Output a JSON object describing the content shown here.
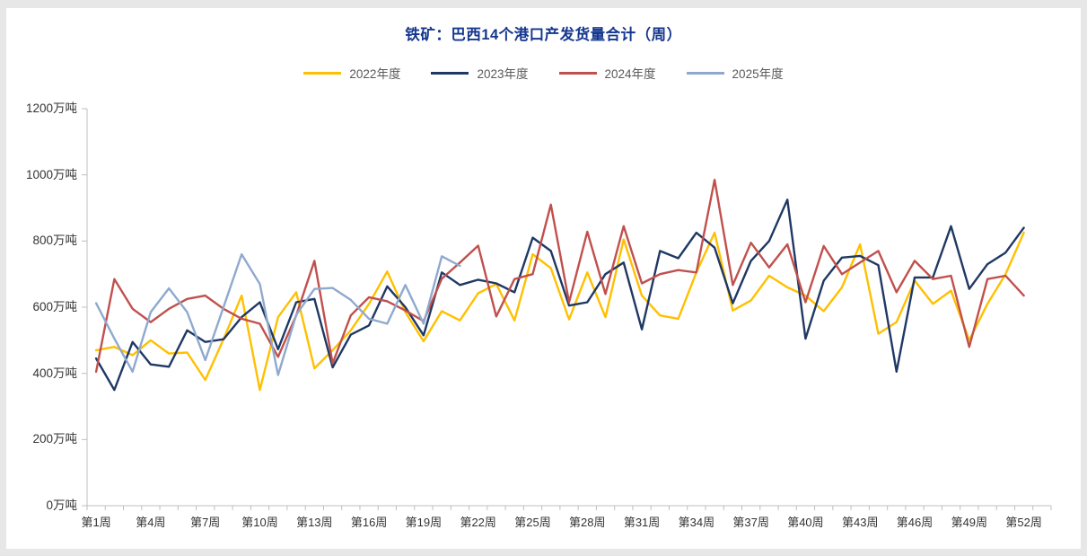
{
  "window": {
    "frame_background": "#E7E7E7",
    "card_background": "#FFFFFF"
  },
  "chart_data": {
    "type": "line",
    "title": "铁矿：巴西14个港口产发货量合计（周）",
    "title_color": "#14368E",
    "unit": "万吨",
    "weeks_total": 52,
    "ylim": [
      0,
      1200
    ],
    "y_tick_step": 200,
    "y_tick_labels": [
      "0万吨",
      "200万吨",
      "400万吨",
      "600万吨",
      "800万吨",
      "1000万吨",
      "1200万吨"
    ],
    "x_tick_labels": [
      {
        "week": 1,
        "label": "第1周"
      },
      {
        "week": 4,
        "label": "第4周"
      },
      {
        "week": 7,
        "label": "第7周"
      },
      {
        "week": 10,
        "label": "第10周"
      },
      {
        "week": 13,
        "label": "第13周"
      },
      {
        "week": 16,
        "label": "第16周"
      },
      {
        "week": 19,
        "label": "第19周"
      },
      {
        "week": 22,
        "label": "第22周"
      },
      {
        "week": 25,
        "label": "第25周"
      },
      {
        "week": 28,
        "label": "第28周"
      },
      {
        "week": 31,
        "label": "第31周"
      },
      {
        "week": 34,
        "label": "第34周"
      },
      {
        "week": 37,
        "label": "第37周"
      },
      {
        "week": 40,
        "label": "第40周"
      },
      {
        "week": 43,
        "label": "第43周"
      },
      {
        "week": 46,
        "label": "第46周"
      },
      {
        "week": 49,
        "label": "第49周"
      },
      {
        "week": 52,
        "label": "第52周"
      }
    ],
    "grid": false,
    "legend_position": "top",
    "axis_color": "#BFBFBF",
    "tick_label_color": "#333333",
    "legend_text_color": "#595959",
    "series": [
      {
        "name": "2022年度",
        "color": "#FFC000",
        "values": [
          470,
          480,
          455,
          500,
          460,
          463,
          380,
          503,
          635,
          350,
          570,
          645,
          415,
          470,
          530,
          610,
          708,
          585,
          497,
          588,
          560,
          642,
          670,
          560,
          760,
          718,
          563,
          705,
          570,
          805,
          635,
          575,
          565,
          705,
          825,
          590,
          620,
          695,
          660,
          635,
          588,
          660,
          790,
          520,
          555,
          680,
          610,
          650,
          500,
          610,
          700,
          825
        ]
      },
      {
        "name": "2023年度",
        "color": "#1F3864",
        "values": [
          445,
          350,
          495,
          427,
          420,
          530,
          495,
          503,
          570,
          615,
          473,
          615,
          625,
          418,
          517,
          545,
          663,
          600,
          515,
          705,
          667,
          683,
          672,
          645,
          810,
          770,
          605,
          615,
          700,
          735,
          533,
          770,
          748,
          825,
          780,
          612,
          740,
          800,
          925,
          505,
          680,
          750,
          755,
          727,
          405,
          690,
          690,
          845,
          655,
          730,
          765,
          840
        ]
      },
      {
        "name": "2024年度",
        "color": "#C0504D",
        "values": [
          405,
          685,
          595,
          555,
          595,
          625,
          635,
          595,
          565,
          550,
          450,
          575,
          740,
          430,
          575,
          630,
          618,
          590,
          558,
          686,
          735,
          786,
          572,
          685,
          700,
          910,
          615,
          828,
          640,
          845,
          672,
          700,
          712,
          705,
          985,
          667,
          795,
          720,
          790,
          615,
          785,
          700,
          735,
          770,
          645,
          740,
          685,
          695,
          480,
          685,
          695,
          635
        ]
      },
      {
        "name": "2025年度",
        "color": "#8FA9CE",
        "values": [
          612,
          505,
          405,
          585,
          657,
          585,
          440,
          600,
          760,
          670,
          395,
          577,
          655,
          658,
          622,
          565,
          550,
          667,
          550,
          754,
          725
        ]
      }
    ]
  }
}
